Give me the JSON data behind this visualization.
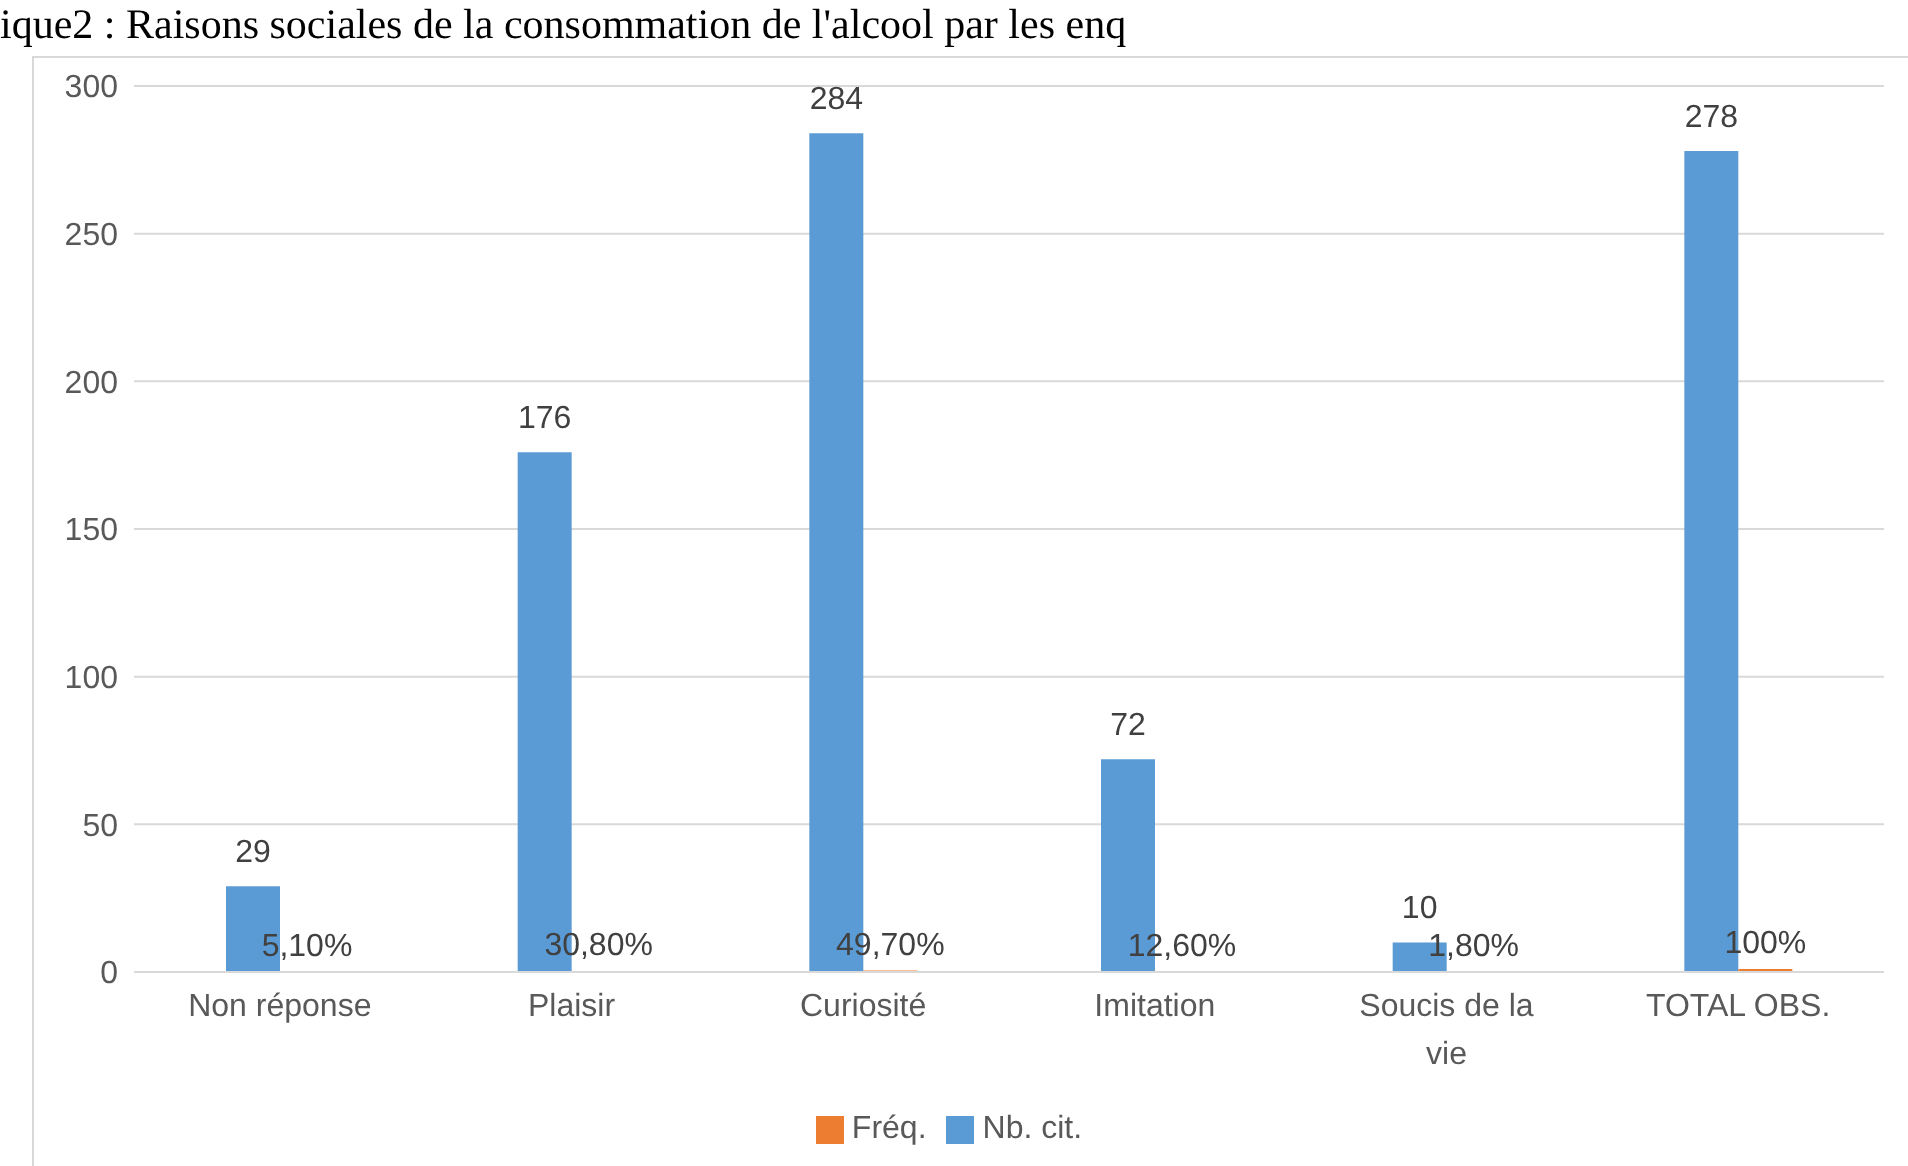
{
  "chart_data": {
    "type": "bar",
    "title": "ique2 : Raisons sociales de la consommation de l'alcool par les enq",
    "categories": [
      "Non réponse",
      "Plaisir",
      "Curiosité",
      "Imitation",
      "Soucis de la vie",
      "TOTAL OBS."
    ],
    "series": [
      {
        "name": "Nb. cit.",
        "color": "#5b9bd5",
        "values": [
          29,
          176,
          284,
          72,
          10,
          278
        ],
        "value_labels": [
          "29",
          "176",
          "284",
          "72",
          "10",
          "278"
        ]
      },
      {
        "name": "Fréq.",
        "color": "#ed7d31",
        "values": [
          0.051,
          0.308,
          0.497,
          0.126,
          0.018,
          1
        ],
        "value_labels": [
          "5,10%",
          "30,80%",
          "49,70%",
          "12,60%",
          "1,80%",
          "100%"
        ]
      }
    ],
    "ylim": [
      0,
      300
    ],
    "yticks": [
      0,
      50,
      100,
      150,
      200,
      250,
      300
    ],
    "grid": "y",
    "legend": "bottom"
  }
}
